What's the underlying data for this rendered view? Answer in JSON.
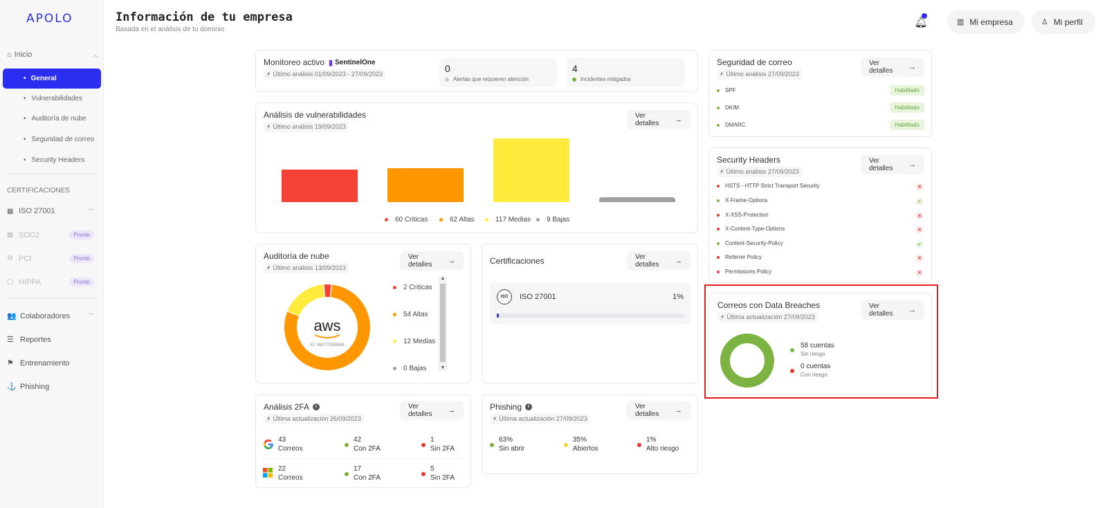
{
  "sidebar": {
    "logo": "APOLO",
    "inicio": "Inicio",
    "items": [
      {
        "label": "General",
        "active": true
      },
      {
        "label": "Vulnerabilidades"
      },
      {
        "label": "Auditoría de nube"
      },
      {
        "label": "Seguridad de correo"
      },
      {
        "label": "Security Headers"
      }
    ],
    "certificaciones_title": "CERTIFICACIONES",
    "certs": [
      {
        "label": "ISO 27001"
      },
      {
        "label": "SOC2",
        "badge": "Pronto"
      },
      {
        "label": "PCI",
        "badge": "Pronto"
      },
      {
        "label": "HIPPA",
        "badge": "Pronto"
      }
    ],
    "main": [
      {
        "label": "Colaboradores"
      },
      {
        "label": "Reportes"
      },
      {
        "label": "Entrenamiento"
      },
      {
        "label": "Phishing"
      }
    ]
  },
  "header": {
    "title": "Información de tu empresa",
    "subtitle": "Basada en el análisis de tu dominio",
    "company_btn": "Mi empresa",
    "profile_btn": "Mi perfil"
  },
  "common": {
    "details": "Ver detalles"
  },
  "monitoreo": {
    "title": "Monitoreo activo",
    "brand": "SentinelOne",
    "sub": "Último análisis 01/09/2023 - 27/09/2023",
    "alerts_num": "0",
    "alerts_lbl": "Alertas que requieren atención",
    "incidents_num": "4",
    "incidents_lbl": "Incidentes mitigados"
  },
  "vuln": {
    "title": "Análisis de vulnerabilidades",
    "sub": "Último análisis 19/09/2023"
  },
  "chart_data": {
    "type": "bar",
    "categories": [
      "Criticas",
      "Altas",
      "Medias",
      "Bajas"
    ],
    "values": [
      60,
      62,
      117,
      9
    ],
    "colors": [
      "#f44336",
      "#ff9800",
      "#ffeb3b",
      "#9e9e9e"
    ],
    "legend_labels": [
      "60 Criticas",
      "62 Altas",
      "117 Medias",
      "9 Bajas"
    ],
    "legend": "bottom",
    "grid": false
  },
  "nube": {
    "title": "Auditoría de nube",
    "sub": "Último análisis 13/09/2023",
    "logo": "aws",
    "id": "ID: 084773936848",
    "legend": [
      "2 Criticas",
      "54 Altas",
      "12 Medias",
      "0 Bajas"
    ],
    "values": [
      2,
      54,
      12,
      0
    ],
    "colors": [
      "#f44336",
      "#ff9800",
      "#ffeb3b",
      "#9e9e9e"
    ]
  },
  "cert": {
    "title": "Certificaciones",
    "iso_icon": "ISO",
    "name": "ISO 27001",
    "pct_label": "1%",
    "pct": 1
  },
  "twofa": {
    "title": "Análisis 2FA",
    "sub": "Última actualización 26/09/2023",
    "google": {
      "total": "43",
      "total_lbl": "Correos",
      "with": "42",
      "with_lbl": "Con 2FA",
      "without": "1",
      "without_lbl": "Sin 2FA"
    },
    "microsoft": {
      "total": "22",
      "total_lbl": "Correos",
      "with": "17",
      "with_lbl": "Con 2FA",
      "without": "5",
      "without_lbl": "Sin 2FA"
    }
  },
  "phishing": {
    "title": "Phishing",
    "sub": "Última actualización 27/09/2023",
    "stats": [
      {
        "pct": "63%",
        "lbl": "Sin abrir",
        "color": "#7cb342"
      },
      {
        "pct": "35%",
        "lbl": "Abiertos",
        "color": "#fdd835"
      },
      {
        "pct": "1%",
        "lbl": "Alto riesgo",
        "color": "#e53935"
      }
    ]
  },
  "correo": {
    "title": "Seguridad de correo",
    "sub": "Último análisis 27/09/2023",
    "rows": [
      {
        "label": "SPF",
        "status": "Habilitado"
      },
      {
        "label": "DKIM",
        "status": "Habilitado"
      },
      {
        "label": "DMARC",
        "status": "Habilitado"
      }
    ]
  },
  "headers": {
    "title": "Security Headers",
    "sub": "Último análisis 27/09/2023",
    "rows": [
      {
        "label": "HSTS - HTTP Strict Transport Security",
        "ok": false
      },
      {
        "label": "X-Frame-Options",
        "ok": true
      },
      {
        "label": "X-XSS-Protection",
        "ok": false
      },
      {
        "label": "X-Content-Type-Options",
        "ok": false
      },
      {
        "label": "Content-Security-Policy",
        "ok": true
      },
      {
        "label": "Referrer Policy",
        "ok": false
      },
      {
        "label": "Permissions Policy",
        "ok": false
      }
    ]
  },
  "breaches": {
    "title": "Correos con Data Breaches",
    "sub": "Última actualización 27/09/2023",
    "safe_num": "58 cuentas",
    "safe_lbl": "Sin riesgo",
    "risk_num": "0 cuentas",
    "risk_lbl": "Con riesgo",
    "values": [
      58,
      0
    ],
    "colors": [
      "#7cb342",
      "#e53935"
    ]
  }
}
